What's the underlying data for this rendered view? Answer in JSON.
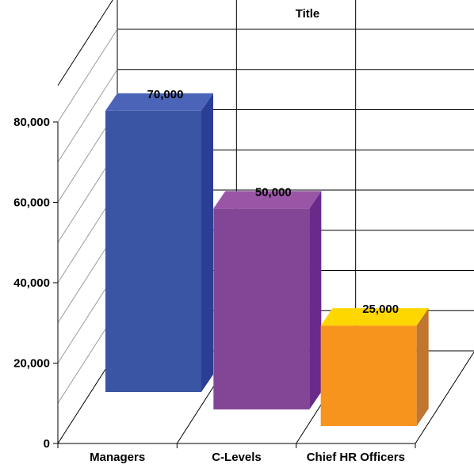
{
  "chart_data": {
    "type": "bar",
    "title": "Title",
    "categories": [
      "Managers",
      "C-Levels",
      "Chief HR Officers"
    ],
    "values": [
      70000,
      50000,
      25000
    ],
    "data_labels": [
      "70,000",
      "50,000",
      "25,000"
    ],
    "y_ticks": [
      0,
      20000,
      40000,
      60000,
      80000
    ],
    "y_tick_labels": [
      "0",
      "20,000",
      "40,000",
      "60,000",
      "80,000"
    ],
    "ylim": [
      0,
      80000
    ],
    "xlabel": "",
    "ylabel": "",
    "grid": true,
    "style": "3d-clustered",
    "colors": [
      {
        "front": "#3A55A4",
        "side": "#2B3E95",
        "top": "#4B64B8"
      },
      {
        "front": "#834696",
        "side": "#6A2A89",
        "top": "#9A55A6"
      },
      {
        "front": "#F7941D",
        "side": "#C07530",
        "top": "#FFD700"
      }
    ]
  }
}
